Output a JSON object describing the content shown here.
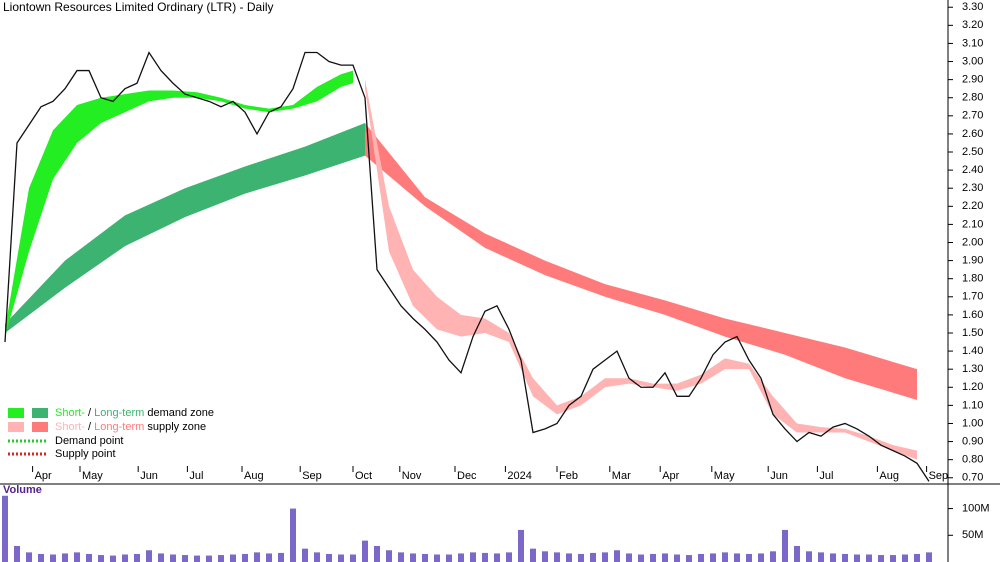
{
  "chart_data": {
    "type": "line",
    "title": "Liontown Resources Limited Ordinary (LTR) - Daily",
    "xlim": [
      0,
      77
    ],
    "ylim": [
      0.66,
      3.34
    ],
    "xticks": [
      {
        "value": 2.3,
        "label": "Apr"
      },
      {
        "value": 6.25,
        "label": "May"
      },
      {
        "value": 11.1,
        "label": "Jun"
      },
      {
        "value": 15.2,
        "label": "Jul"
      },
      {
        "value": 19.75,
        "label": "Aug"
      },
      {
        "value": 24.6,
        "label": "Sep"
      },
      {
        "value": 29,
        "label": "Oct"
      },
      {
        "value": 32.9,
        "label": "Nov"
      },
      {
        "value": 37.5,
        "label": "Dec"
      },
      {
        "value": 41.7,
        "label": "2024"
      },
      {
        "value": 46,
        "label": "Feb"
      },
      {
        "value": 50.4,
        "label": "Mar"
      },
      {
        "value": 54.6,
        "label": "Apr"
      },
      {
        "value": 58.9,
        "label": "May"
      },
      {
        "value": 63.6,
        "label": "Jun"
      },
      {
        "value": 67.7,
        "label": "Jul"
      },
      {
        "value": 72.7,
        "label": "Aug"
      },
      {
        "value": 76.8,
        "label": "Sep"
      }
    ],
    "yticks": [
      {
        "value": 0.7,
        "label": "0.70"
      },
      {
        "value": 0.8,
        "label": "0.80"
      },
      {
        "value": 0.9,
        "label": "0.90"
      },
      {
        "value": 1.0,
        "label": "1.00"
      },
      {
        "value": 1.1,
        "label": "1.10"
      },
      {
        "value": 1.2,
        "label": "1.20"
      },
      {
        "value": 1.3,
        "label": "1.30"
      },
      {
        "value": 1.4,
        "label": "1.40"
      },
      {
        "value": 1.5,
        "label": "1.50"
      },
      {
        "value": 1.6,
        "label": "1.60"
      },
      {
        "value": 1.7,
        "label": "1.70"
      },
      {
        "value": 1.8,
        "label": "1.80"
      },
      {
        "value": 1.9,
        "label": "1.90"
      },
      {
        "value": 2.0,
        "label": "2.00"
      },
      {
        "value": 2.1,
        "label": "2.10"
      },
      {
        "value": 2.2,
        "label": "2.20"
      },
      {
        "value": 2.3,
        "label": "2.30"
      },
      {
        "value": 2.4,
        "label": "2.40"
      },
      {
        "value": 2.5,
        "label": "2.50"
      },
      {
        "value": 2.6,
        "label": "2.60"
      },
      {
        "value": 2.7,
        "label": "2.70"
      },
      {
        "value": 2.8,
        "label": "2.80"
      },
      {
        "value": 2.9,
        "label": "2.90"
      },
      {
        "value": 3.0,
        "label": "3.00"
      },
      {
        "value": 3.1,
        "label": "3.10"
      },
      {
        "value": 3.2,
        "label": "3.20"
      },
      {
        "value": 3.3,
        "label": "3.30"
      }
    ],
    "color": "#111111",
    "values": [
      1.45,
      2.55,
      2.65,
      2.75,
      2.78,
      2.85,
      2.95,
      2.95,
      2.8,
      2.78,
      2.85,
      2.88,
      3.05,
      2.95,
      2.88,
      2.82,
      2.8,
      2.78,
      2.75,
      2.78,
      2.72,
      2.6,
      2.72,
      2.75,
      2.85,
      3.05,
      3.05,
      3.0,
      2.98,
      2.98,
      2.8,
      1.85,
      1.75,
      1.65,
      1.58,
      1.52,
      1.45,
      1.35,
      1.28,
      1.48,
      1.62,
      1.65,
      1.52,
      1.35,
      0.95,
      0.97,
      1.0,
      1.1,
      1.15,
      1.3,
      1.35,
      1.4,
      1.25,
      1.2,
      1.2,
      1.28,
      1.15,
      1.15,
      1.25,
      1.38,
      1.45,
      1.48,
      1.35,
      1.25,
      1.05,
      0.97,
      0.9,
      0.95,
      0.93,
      0.98,
      1.0,
      0.97,
      0.93,
      0.88,
      0.85,
      0.82,
      0.78,
      0.68
    ],
    "bands": [
      {
        "color": "#3cb371",
        "x": [
          0,
          5,
          10,
          15,
          20,
          25,
          30
        ],
        "upper": [
          1.55,
          1.9,
          2.15,
          2.3,
          2.42,
          2.53,
          2.66
        ],
        "lower": [
          1.5,
          1.75,
          1.98,
          2.14,
          2.27,
          2.37,
          2.48
        ]
      },
      {
        "color": "#ff7b7b",
        "x": [
          30,
          35,
          40,
          45,
          50,
          55,
          60,
          65,
          70,
          76
        ],
        "upper": [
          2.66,
          2.25,
          2.05,
          1.9,
          1.77,
          1.68,
          1.58,
          1.5,
          1.42,
          1.3
        ],
        "lower": [
          2.48,
          2.2,
          1.97,
          1.82,
          1.7,
          1.6,
          1.48,
          1.38,
          1.25,
          1.13
        ]
      },
      {
        "color": "#22ee22",
        "x": [
          0,
          2,
          4,
          6,
          8,
          10,
          12,
          14,
          16,
          18,
          20,
          22,
          24,
          26,
          28,
          29
        ],
        "upper": [
          1.52,
          2.3,
          2.62,
          2.76,
          2.8,
          2.82,
          2.84,
          2.84,
          2.83,
          2.8,
          2.76,
          2.74,
          2.76,
          2.86,
          2.93,
          2.95
        ],
        "lower": [
          1.48,
          1.95,
          2.35,
          2.55,
          2.66,
          2.72,
          2.78,
          2.8,
          2.8,
          2.78,
          2.74,
          2.72,
          2.74,
          2.78,
          2.86,
          2.88
        ]
      },
      {
        "color": "#ffb3b3",
        "x": [
          30,
          32,
          34,
          36,
          38,
          40,
          42,
          44,
          46,
          48,
          50,
          52,
          54,
          56,
          58,
          60,
          62,
          64,
          66,
          68,
          70,
          72,
          74,
          76
        ],
        "upper": [
          2.9,
          2.2,
          1.85,
          1.7,
          1.6,
          1.58,
          1.5,
          1.25,
          1.1,
          1.15,
          1.25,
          1.25,
          1.22,
          1.22,
          1.27,
          1.36,
          1.33,
          1.15,
          1.0,
          0.98,
          0.97,
          0.93,
          0.88,
          0.85
        ],
        "lower": [
          2.85,
          1.95,
          1.65,
          1.52,
          1.48,
          1.5,
          1.45,
          1.15,
          1.05,
          1.1,
          1.2,
          1.22,
          1.2,
          1.18,
          1.22,
          1.3,
          1.3,
          1.05,
          0.95,
          0.95,
          0.95,
          0.9,
          0.85,
          0.8
        ]
      }
    ],
    "legend": [
      {
        "swatches": [
          "#22ee22",
          "#3cb371"
        ],
        "short": "Short-",
        "sep": "/",
        "long": "Long-term",
        "rest": "demand zone"
      },
      {
        "swatches": [
          "#ffb3b3",
          "#ff7b7b"
        ],
        "short": "Short-",
        "sep": "/",
        "long": "Long-term",
        "rest": "supply zone"
      }
    ],
    "points": [
      {
        "label": "Demand point",
        "color": "#22cc22"
      },
      {
        "label": "Supply point",
        "color": "#dd2222"
      }
    ],
    "volume": {
      "title": "Volume",
      "color": "#7b68c8",
      "ylim": [
        0,
        146
      ],
      "yticks": [
        {
          "value": 100,
          "label": "100M"
        },
        {
          "value": 50,
          "label": "50M"
        }
      ],
      "values": [
        124,
        30,
        18,
        15,
        14,
        16,
        18,
        15,
        13,
        12,
        14,
        15,
        22,
        16,
        14,
        13,
        12,
        12,
        13,
        14,
        15,
        18,
        16,
        17,
        100,
        25,
        18,
        15,
        14,
        14,
        40,
        30,
        22,
        18,
        16,
        15,
        14,
        14,
        16,
        18,
        17,
        16,
        18,
        60,
        25,
        20,
        18,
        16,
        15,
        17,
        18,
        22,
        16,
        14,
        15,
        16,
        14,
        13,
        15,
        16,
        18,
        16,
        15,
        16,
        20,
        60,
        30,
        20,
        18,
        16,
        15,
        14,
        14,
        13,
        13,
        14,
        15,
        18
      ]
    }
  }
}
